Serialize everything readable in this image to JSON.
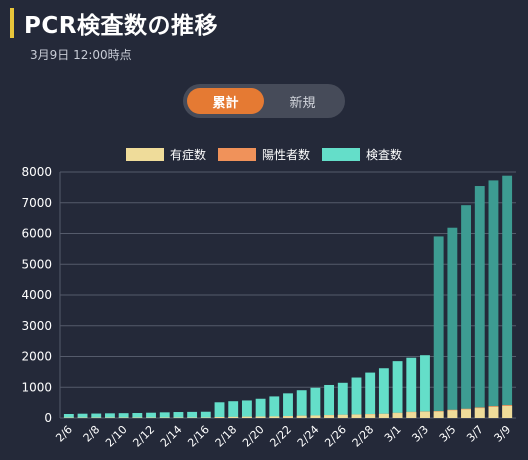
{
  "header": {
    "title": "PCR検査数の推移",
    "subtitle": "3月9日 12:00時点"
  },
  "toggle": {
    "cumulative_label": "累計",
    "new_label": "新規",
    "selected": "累計"
  },
  "colors": {
    "background": "#242939",
    "symptomatic": "#efdc9a",
    "positive": "#f0925a",
    "tests": "#64dec9",
    "tests_later": "#3d9c92",
    "toggle_active": "#e57a33",
    "grid": "#555b6b"
  },
  "chart_data": {
    "type": "bar",
    "stacked": true,
    "categories": [
      "2/6",
      "2/7",
      "2/8",
      "2/9",
      "2/10",
      "2/11",
      "2/12",
      "2/13",
      "2/14",
      "2/15",
      "2/16",
      "2/17",
      "2/18",
      "2/19",
      "2/20",
      "2/21",
      "2/22",
      "2/23",
      "2/24",
      "2/25",
      "2/26",
      "2/27",
      "2/28",
      "2/29",
      "3/1",
      "3/2",
      "3/3",
      "3/4",
      "3/5",
      "3/6",
      "3/7",
      "3/8",
      "3/9"
    ],
    "tick_labels": [
      "2/6",
      "2/8",
      "2/10",
      "2/12",
      "2/14",
      "2/16",
      "2/18",
      "2/20",
      "2/22",
      "2/24",
      "2/26",
      "2/28",
      "3/1",
      "3/3",
      "3/5",
      "3/7",
      "3/9"
    ],
    "series": [
      {
        "name": "有症数",
        "values": [
          10,
          10,
          10,
          12,
          12,
          12,
          12,
          14,
          14,
          14,
          14,
          30,
          35,
          40,
          45,
          50,
          60,
          70,
          80,
          90,
          100,
          110,
          120,
          130,
          160,
          190,
          200,
          210,
          250,
          280,
          320,
          360,
          390
        ]
      },
      {
        "name": "陽性者数",
        "values": [
          0,
          0,
          0,
          0,
          0,
          0,
          0,
          0,
          0,
          0,
          0,
          1,
          1,
          1,
          1,
          2,
          2,
          3,
          3,
          4,
          5,
          6,
          7,
          8,
          9,
          10,
          12,
          15,
          18,
          21,
          24,
          27,
          30
        ]
      },
      {
        "name": "検査数",
        "values": [
          120,
          130,
          135,
          140,
          145,
          150,
          160,
          170,
          180,
          185,
          190,
          480,
          510,
          530,
          580,
          650,
          740,
          830,
          900,
          980,
          1040,
          1200,
          1350,
          1480,
          1680,
          1760,
          1830,
          5680,
          5920,
          6620,
          7200,
          7340,
          7460
        ]
      }
    ],
    "ylim": [
      0,
      8000
    ],
    "yticks": [
      0,
      1000,
      2000,
      3000,
      4000,
      5000,
      6000,
      7000,
      8000
    ],
    "grid": true,
    "legend_position": "top-center"
  }
}
